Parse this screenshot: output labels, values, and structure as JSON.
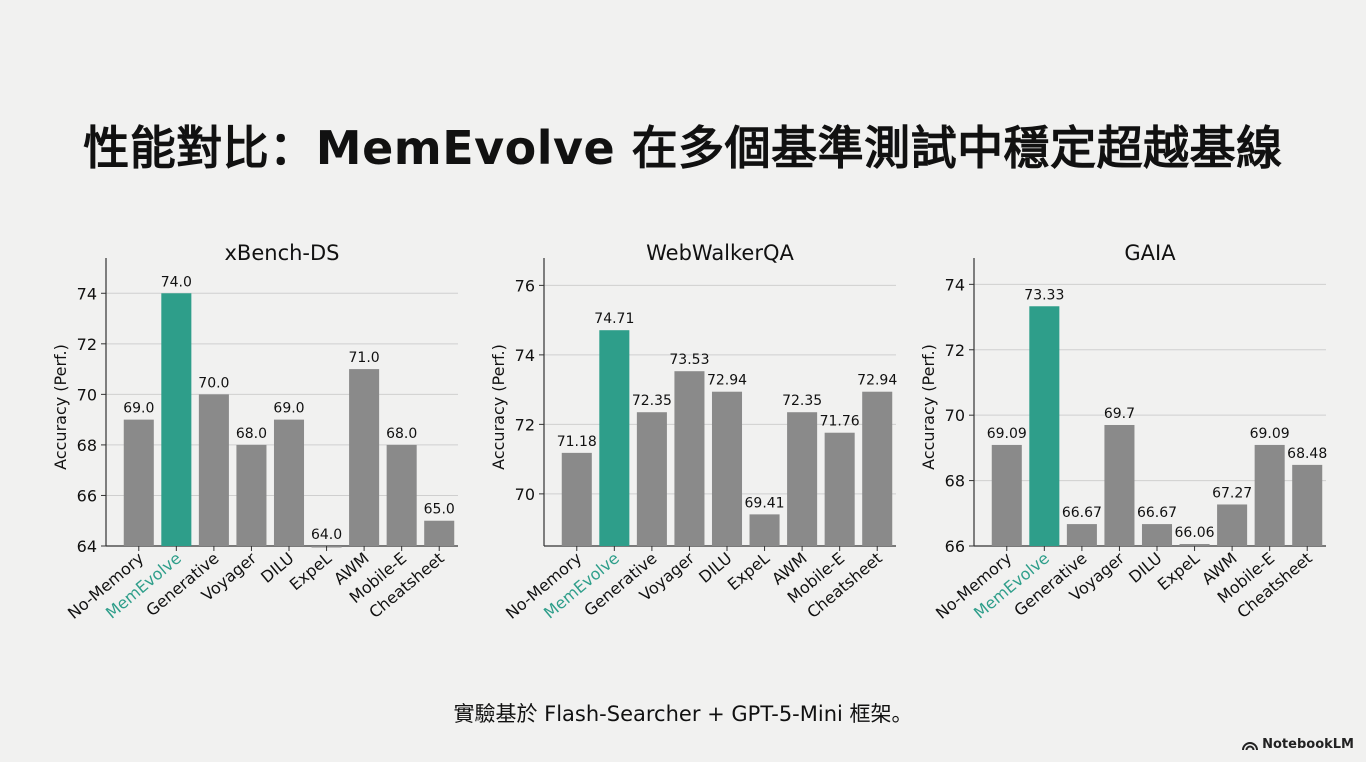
{
  "page": {
    "title": "性能對比：MemEvolve 在多個基準測試中穩定超越基線",
    "caption": "實驗基於 Flash-Searcher + GPT-5-Mini 框架。",
    "brand": "NotebookLM"
  },
  "colors": {
    "highlight": "#2e9e8a",
    "bar": "#8a8a8a",
    "grid": "#cfcfcf",
    "axis": "#333333"
  },
  "chart_data": [
    {
      "type": "bar",
      "title": "xBench-DS",
      "ylabel": "Accuracy (Perf.)",
      "ylim": [
        64,
        75
      ],
      "yticks": [
        64,
        66,
        68,
        70,
        72,
        74
      ],
      "grid": true,
      "highlight": "MemEvolve",
      "categories": [
        "No-Memory",
        "MemEvolve",
        "Generative",
        "Voyager",
        "DILU",
        "ExpeL",
        "AWM",
        "Mobile-E",
        "Cheatsheet"
      ],
      "values": [
        69.0,
        74.0,
        70.0,
        68.0,
        69.0,
        64.0,
        71.0,
        68.0,
        65.0
      ],
      "value_labels": [
        "69.0",
        "74.0",
        "70.0",
        "68.0",
        "69.0",
        "64.0",
        "71.0",
        "68.0",
        "65.0"
      ]
    },
    {
      "type": "bar",
      "title": "WebWalkerQA",
      "ylabel": "Accuracy (Perf.)",
      "ylim": [
        68.5,
        76.5
      ],
      "yticks": [
        70,
        72,
        74,
        76
      ],
      "grid": true,
      "highlight": "MemEvolve",
      "categories": [
        "No-Memory",
        "MemEvolve",
        "Generative",
        "Voyager",
        "DILU",
        "ExpeL",
        "AWM",
        "Mobile-E",
        "Cheatsheet"
      ],
      "values": [
        71.18,
        74.71,
        72.35,
        73.53,
        72.94,
        69.41,
        72.35,
        71.76,
        72.94
      ],
      "value_labels": [
        "71.18",
        "74.71",
        "72.35",
        "73.53",
        "72.94",
        "69.41",
        "72.35",
        "71.76",
        "72.94"
      ]
    },
    {
      "type": "bar",
      "title": "GAIA",
      "ylabel": "Accuracy (Perf.)",
      "ylim": [
        66,
        74.5
      ],
      "yticks": [
        66,
        68,
        70,
        72,
        74
      ],
      "grid": true,
      "highlight": "MemEvolve",
      "categories": [
        "No-Memory",
        "MemEvolve",
        "Generative",
        "Voyager",
        "DILU",
        "ExpeL",
        "AWM",
        "Mobile-E",
        "Cheatsheet"
      ],
      "values": [
        69.09,
        73.33,
        66.67,
        69.7,
        66.67,
        66.06,
        67.27,
        69.09,
        68.48
      ],
      "value_labels": [
        "69.09",
        "73.33",
        "66.67",
        "69.7",
        "66.67",
        "66.06",
        "67.27",
        "69.09",
        "68.48"
      ]
    }
  ]
}
